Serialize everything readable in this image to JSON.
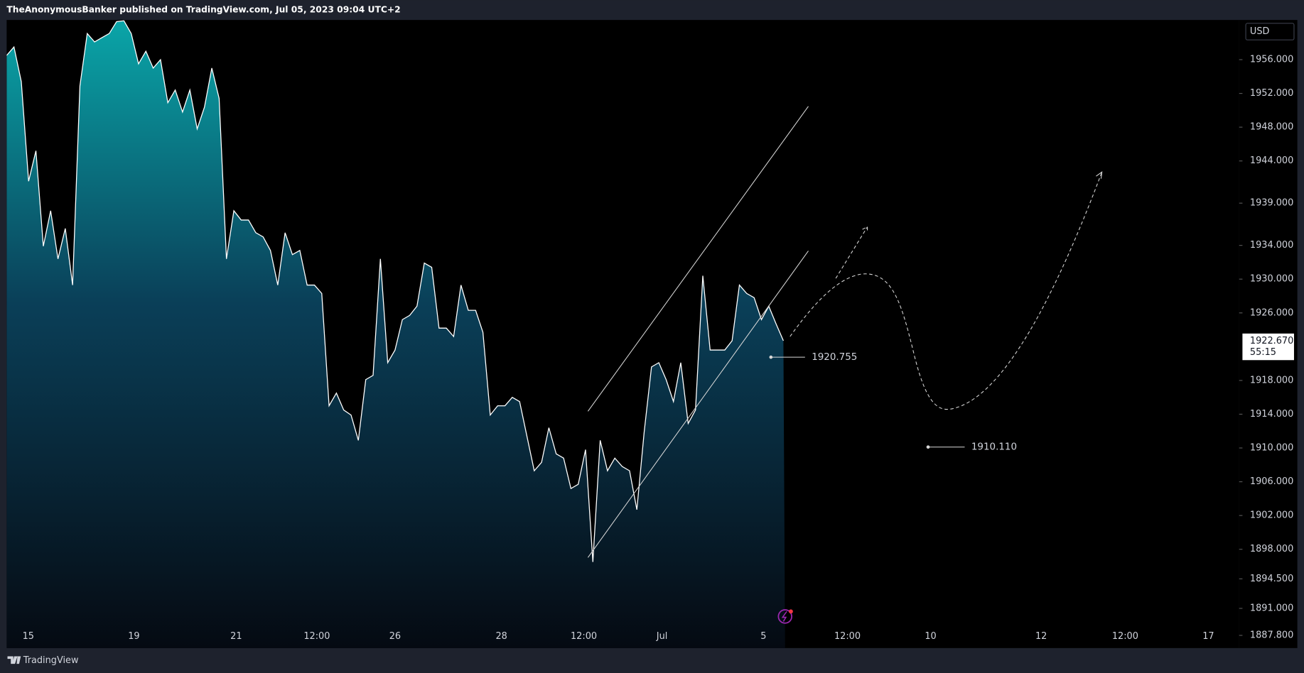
{
  "header": {
    "title": "TheAnonymousBanker published on TradingView.com, Jul 05, 2023 09:04 UTC+2"
  },
  "footer": {
    "brand": "TradingView"
  },
  "chart_data": {
    "type": "area",
    "currency": "USD",
    "color": "#ffffff",
    "values": [
      1956.5,
      1957.5,
      1953.4,
      1941.6,
      1945.2,
      1933.9,
      1938.1,
      1932.4,
      1936.0,
      1929.3,
      1952.9,
      1959.1,
      1958.1,
      1958.6,
      1959.1,
      1960.5,
      1960.6,
      1959.1,
      1955.5,
      1957.0,
      1955.0,
      1956.0,
      1950.9,
      1952.4,
      1949.8,
      1952.4,
      1947.8,
      1950.4,
      1955.0,
      1951.4,
      1932.4,
      1938.1,
      1937.0,
      1937.0,
      1935.5,
      1935.0,
      1933.4,
      1929.3,
      1935.5,
      1932.9,
      1933.4,
      1929.3,
      1929.3,
      1928.3,
      1915.0,
      1916.5,
      1914.5,
      1913.9,
      1910.9,
      1918.1,
      1918.6,
      1932.4,
      1920.1,
      1921.6,
      1925.2,
      1925.7,
      1926.8,
      1931.9,
      1931.4,
      1924.2,
      1924.2,
      1923.2,
      1929.3,
      1926.3,
      1926.3,
      1923.7,
      1913.9,
      1915.0,
      1915.0,
      1916.0,
      1915.5,
      1911.4,
      1907.3,
      1908.3,
      1912.4,
      1909.3,
      1908.8,
      1905.2,
      1905.7,
      1909.8,
      1896.5,
      1910.9,
      1907.3,
      1908.8,
      1907.8,
      1907.3,
      1902.7,
      1911.9,
      1919.6,
      1920.1,
      1918.1,
      1915.5,
      1920.1,
      1912.9,
      1914.5,
      1930.4,
      1921.6,
      1921.6,
      1921.6,
      1922.7,
      1929.3,
      1928.3,
      1927.8,
      1925.2,
      1926.8,
      1924.7,
      1922.7
    ],
    "last_price": {
      "value": 1922.67,
      "label": "1922.670"
    },
    "countdown": "55:15",
    "annotations": [
      {
        "value": 1920.755,
        "label": "1920.755"
      },
      {
        "value": 1910.11,
        "label": "1910.110"
      }
    ],
    "ylim": [
      1886.3,
      1960.7
    ],
    "yticks": [
      {
        "value": 1956,
        "label": "1956.000"
      },
      {
        "value": 1952,
        "label": "1952.000"
      },
      {
        "value": 1948,
        "label": "1948.000"
      },
      {
        "value": 1944,
        "label": "1944.000"
      },
      {
        "value": 1939,
        "label": "1939.000"
      },
      {
        "value": 1934,
        "label": "1934.000"
      },
      {
        "value": 1930,
        "label": "1930.000"
      },
      {
        "value": 1926,
        "label": "1926.000"
      },
      {
        "value": 1918,
        "label": "1918.000"
      },
      {
        "value": 1914,
        "label": "1914.000"
      },
      {
        "value": 1910,
        "label": "1910.000"
      },
      {
        "value": 1906,
        "label": "1906.000"
      },
      {
        "value": 1902,
        "label": "1902.000"
      },
      {
        "value": 1898,
        "label": "1898.000"
      },
      {
        "value": 1894.5,
        "label": "1894.500"
      },
      {
        "value": 1891,
        "label": "1891.000"
      },
      {
        "value": 1887.8,
        "label": "1887.800"
      }
    ],
    "xtick_labels": [
      "15",
      "19",
      "21",
      "12:00",
      "26",
      "28",
      "12:00",
      "Jul",
      "5",
      "12:00",
      "10",
      "12",
      "12:00",
      "17"
    ]
  }
}
